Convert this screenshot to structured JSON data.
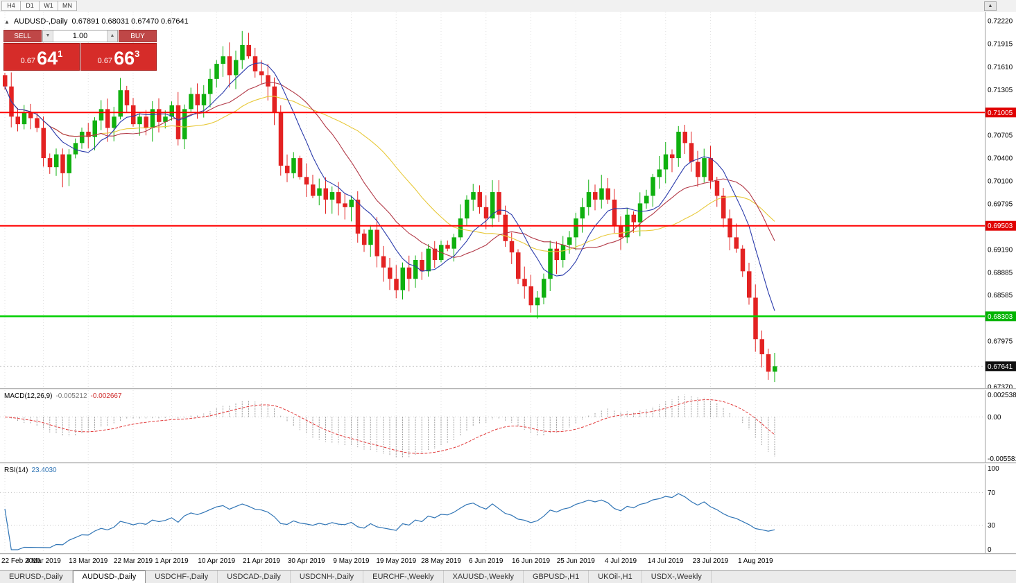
{
  "window": {
    "timeframes": [
      "H4",
      "D1",
      "W1",
      "MN"
    ],
    "scroll_button": "▲"
  },
  "chart": {
    "collapse_icon": "▲",
    "title": "AUDUSD-,Daily",
    "ohlc": "0.67891 0.68031 0.67470 0.67641",
    "trade_panel": {
      "sell_label": "SELL",
      "buy_label": "BUY",
      "volume": "1.00",
      "spin_down": "▼",
      "spin_up": "▲",
      "sell_price": {
        "small": "0.67",
        "big": "64",
        "sup": "1"
      },
      "buy_price": {
        "small": "0.67",
        "big": "66",
        "sup": "3"
      }
    },
    "price_axis": {
      "ticks": [
        "0.72220",
        "0.71915",
        "0.71610",
        "0.71305",
        "0.70705",
        "0.70400",
        "0.70100",
        "0.69795",
        "0.69190",
        "0.68885",
        "0.68585",
        "0.67975",
        "0.67370"
      ],
      "tags": [
        {
          "value": "0.71005",
          "color": "#e00000"
        },
        {
          "value": "0.69503",
          "color": "#e00000"
        },
        {
          "value": "0.68303",
          "color": "#00b400"
        },
        {
          "value": "0.67641",
          "color": "#111111"
        }
      ]
    },
    "hlines": [
      {
        "price": 0.71005,
        "color": "#ff0000",
        "width": 2
      },
      {
        "price": 0.69503,
        "color": "#ff0000",
        "width": 2
      },
      {
        "price": 0.68303,
        "color": "#00cf00",
        "width": 2.5
      }
    ],
    "current_price": {
      "value": "0.67641",
      "price": 0.67641
    }
  },
  "macd": {
    "label": "MACD(12,26,9)",
    "value1": "-0.005212",
    "value2": "-0.002667",
    "axis": [
      "0.002538",
      "0.00",
      "-0.005581"
    ]
  },
  "rsi": {
    "label": "RSI(14)",
    "value": "23.4030",
    "axis": [
      "100",
      "70",
      "30",
      "0"
    ],
    "levels": [
      70,
      30
    ]
  },
  "date_axis": {
    "labels": [
      {
        "text": "22 Feb 2019",
        "index": 0
      },
      {
        "text": "4 Mar 2019",
        "index": 6
      },
      {
        "text": "13 Mar 2019",
        "index": 13
      },
      {
        "text": "22 Mar 2019",
        "index": 20
      },
      {
        "text": "1 Apr 2019",
        "index": 26
      },
      {
        "text": "10 Apr 2019",
        "index": 33
      },
      {
        "text": "21 Apr 2019",
        "index": 40
      },
      {
        "text": "30 Apr 2019",
        "index": 47
      },
      {
        "text": "9 May 2019",
        "index": 54
      },
      {
        "text": "19 May 2019",
        "index": 61
      },
      {
        "text": "28 May 2019",
        "index": 68
      },
      {
        "text": "6 Jun 2019",
        "index": 75
      },
      {
        "text": "16 Jun 2019",
        "index": 82
      },
      {
        "text": "25 Jun 2019",
        "index": 89
      },
      {
        "text": "4 Jul 2019",
        "index": 96
      },
      {
        "text": "14 Jul 2019",
        "index": 103
      },
      {
        "text": "23 Jul 2019",
        "index": 110
      },
      {
        "text": "1 Aug 2019",
        "index": 117
      }
    ]
  },
  "tabs": [
    {
      "label": "EURUSD-,Daily",
      "active": false
    },
    {
      "label": "AUDUSD-,Daily",
      "active": true
    },
    {
      "label": "USDCHF-,Daily",
      "active": false
    },
    {
      "label": "USDCAD-,Daily",
      "active": false
    },
    {
      "label": "USDCNH-,Daily",
      "active": false
    },
    {
      "label": "EURCHF-,Weekly",
      "active": false
    },
    {
      "label": "XAUUSD-,Weekly",
      "active": false
    },
    {
      "label": "GBPUSD-,H1",
      "active": false
    },
    {
      "label": "UKOil-,H1",
      "active": false
    },
    {
      "label": "USDX-,Weekly",
      "active": false
    }
  ],
  "chart_data": {
    "type": "candlestick",
    "symbol": "AUDUSD",
    "timeframe": "Daily",
    "price_range": [
      0.6735,
      0.7234
    ],
    "first_open": 0.715,
    "closes": [
      0.7135,
      0.7095,
      0.7085,
      0.71,
      0.7093,
      0.708,
      0.704,
      0.7028,
      0.7045,
      0.702,
      0.7045,
      0.706,
      0.7075,
      0.7068,
      0.709,
      0.7105,
      0.708,
      0.7095,
      0.713,
      0.711,
      0.7085,
      0.7095,
      0.708,
      0.7105,
      0.7088,
      0.7095,
      0.711,
      0.7065,
      0.7105,
      0.7125,
      0.711,
      0.7125,
      0.7145,
      0.7165,
      0.7175,
      0.715,
      0.717,
      0.719,
      0.7175,
      0.7155,
      0.715,
      0.7135,
      0.71,
      0.703,
      0.702,
      0.704,
      0.7015,
      0.7005,
      0.699,
      0.7,
      0.6985,
      0.6995,
      0.698,
      0.6975,
      0.6985,
      0.694,
      0.6925,
      0.6945,
      0.691,
      0.6895,
      0.688,
      0.6865,
      0.6895,
      0.688,
      0.6905,
      0.689,
      0.692,
      0.6905,
      0.6925,
      0.692,
      0.6935,
      0.696,
      0.6985,
      0.6995,
      0.6975,
      0.696,
      0.6995,
      0.6965,
      0.693,
      0.6915,
      0.688,
      0.687,
      0.6845,
      0.6855,
      0.688,
      0.692,
      0.6905,
      0.6925,
      0.6935,
      0.696,
      0.6975,
      0.6995,
      0.6985,
      0.7,
      0.6985,
      0.695,
      0.6935,
      0.6965,
      0.6955,
      0.698,
      0.699,
      0.7015,
      0.7025,
      0.7045,
      0.704,
      0.7075,
      0.706,
      0.7035,
      0.7015,
      0.704,
      0.701,
      0.699,
      0.696,
      0.6935,
      0.692,
      0.689,
      0.6855,
      0.68,
      0.678,
      0.6757,
      0.67641
    ],
    "ma_periods": {
      "fast": 8,
      "mid": 16,
      "slow": 28
    },
    "indicators": {
      "macd": [
        12,
        26,
        9
      ],
      "rsi": 14
    },
    "colors": {
      "up": "#0fb00f",
      "down": "#e32222",
      "ma_fast": "#2a3bab",
      "ma_mid": "#b23947",
      "ma_slow": "#e8c93a",
      "macd_hist": "#a0a0a0",
      "macd_signal": "#e23a3a",
      "rsi_line": "#2f74b5",
      "grid": "#e0e0e0"
    }
  }
}
